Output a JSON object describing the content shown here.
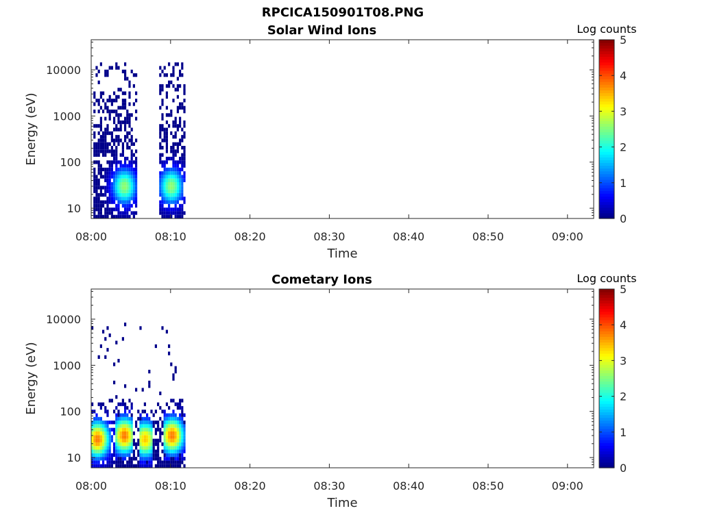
{
  "figure": {
    "title": "RPCICA150901T08.PNG"
  },
  "chart_data": [
    {
      "type": "heatmap",
      "title": "Solar Wind Ions",
      "xlabel": "Time",
      "ylabel": "Energy (eV)",
      "x_ticks": [
        "08:00",
        "08:10",
        "08:20",
        "08:30",
        "08:40",
        "08:50",
        "09:00"
      ],
      "x_range_minutes": [
        0,
        63.3
      ],
      "y_scale": "log",
      "y_ticks": [
        "10",
        "100",
        "1000",
        "10000"
      ],
      "y_range": [
        6,
        45000
      ],
      "colorbar": {
        "label": "Log counts",
        "ticks": [
          "0",
          "1",
          "2",
          "3",
          "4",
          "5"
        ],
        "range": [
          0,
          5
        ],
        "colormap": "jet"
      },
      "clusters": [
        {
          "t_start": 0.2,
          "t_end": 5.8,
          "e_min": 6,
          "e_max": 15000,
          "peak_minute": 4.2,
          "peak_energy": 30,
          "peak_log_counts": 2.6
        },
        {
          "t_start": 8.6,
          "t_end": 11.8,
          "e_min": 6,
          "e_max": 15000,
          "peak_minute": 10.1,
          "peak_energy": 30,
          "peak_log_counts": 2.6
        }
      ]
    },
    {
      "type": "heatmap",
      "title": "Cometary Ions",
      "xlabel": "Time",
      "ylabel": "Energy (eV)",
      "x_ticks": [
        "08:00",
        "08:10",
        "08:20",
        "08:30",
        "08:40",
        "08:50",
        "09:00"
      ],
      "x_range_minutes": [
        0,
        63.3
      ],
      "y_scale": "log",
      "y_ticks": [
        "10",
        "100",
        "1000",
        "10000"
      ],
      "y_range": [
        6,
        45000
      ],
      "colorbar": {
        "label": "Log counts",
        "ticks": [
          "0",
          "1",
          "2",
          "3",
          "4",
          "5"
        ],
        "range": [
          0,
          5
        ],
        "colormap": "jet"
      },
      "clusters": [
        {
          "t_start": 0.0,
          "t_end": 11.8,
          "e_min": 6,
          "e_max": 8000,
          "peak_minute": 0.8,
          "peak_energy": 25,
          "peak_log_counts": 3.8
        },
        {
          "t_start": 3.0,
          "t_end": 5.2,
          "e_min": 8,
          "e_max": 150,
          "peak_minute": 4.2,
          "peak_energy": 30,
          "peak_log_counts": 3.8
        },
        {
          "t_start": 6.0,
          "t_end": 7.8,
          "e_min": 6,
          "e_max": 100,
          "peak_minute": 6.8,
          "peak_energy": 25,
          "peak_log_counts": 3.4
        },
        {
          "t_start": 9.2,
          "t_end": 11.8,
          "e_min": 8,
          "e_max": 200,
          "peak_minute": 10.2,
          "peak_energy": 30,
          "peak_log_counts": 3.8
        }
      ]
    }
  ]
}
